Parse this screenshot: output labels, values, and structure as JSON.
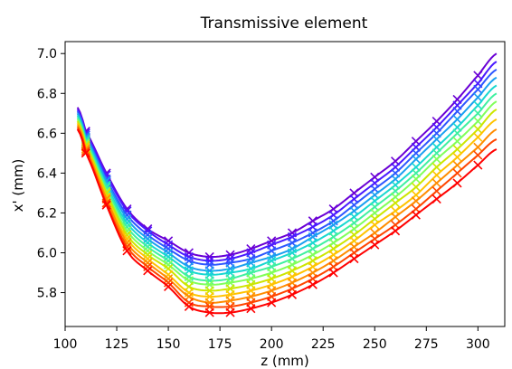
{
  "chart_data": {
    "type": "line",
    "title": "Transmissive element",
    "xlabel": "z (mm)",
    "ylabel": "x' (mm)",
    "xlim": [
      100,
      313
    ],
    "ylim": [
      5.63,
      7.06
    ],
    "xticks": [
      100,
      125,
      150,
      175,
      200,
      225,
      250,
      275,
      300
    ],
    "yticks": [
      5.8,
      6.0,
      6.2,
      6.4,
      6.6,
      6.8,
      7.0
    ],
    "grid": false,
    "legend": "none",
    "x": [
      106,
      110,
      120,
      130,
      140,
      150,
      160,
      170,
      180,
      190,
      200,
      210,
      220,
      230,
      240,
      250,
      260,
      270,
      280,
      290,
      300,
      309
    ],
    "marker_x": [
      110,
      120,
      130,
      140,
      150,
      160,
      170,
      180,
      190,
      200,
      210,
      220,
      230,
      240,
      250,
      260,
      270,
      280,
      290,
      300
    ],
    "series": [
      {
        "color": "#6a00d5",
        "values": [
          6.73,
          6.61,
          6.4,
          6.22,
          6.12,
          6.06,
          6.0,
          5.98,
          5.99,
          6.02,
          6.06,
          6.1,
          6.16,
          6.22,
          6.3,
          6.38,
          6.46,
          6.56,
          6.66,
          6.77,
          6.89,
          7.0
        ]
      },
      {
        "color": "#4a1aff",
        "values": [
          6.72,
          6.6,
          6.39,
          6.21,
          6.11,
          6.04,
          5.98,
          5.96,
          5.97,
          6.0,
          6.04,
          6.08,
          6.13,
          6.19,
          6.27,
          6.35,
          6.43,
          6.53,
          6.63,
          6.74,
          6.85,
          6.96
        ]
      },
      {
        "color": "#2d57ff",
        "values": [
          6.71,
          6.59,
          6.37,
          6.19,
          6.09,
          6.02,
          5.96,
          5.94,
          5.95,
          5.97,
          6.01,
          6.05,
          6.1,
          6.16,
          6.24,
          6.32,
          6.4,
          6.5,
          6.6,
          6.71,
          6.82,
          6.92
        ]
      },
      {
        "color": "#1aa0f0",
        "values": [
          6.7,
          6.58,
          6.36,
          6.17,
          6.07,
          6.0,
          5.93,
          5.91,
          5.92,
          5.95,
          5.98,
          6.02,
          6.08,
          6.14,
          6.21,
          6.29,
          6.37,
          6.47,
          6.57,
          6.67,
          6.78,
          6.88
        ]
      },
      {
        "color": "#18d8d0",
        "values": [
          6.69,
          6.57,
          6.34,
          6.15,
          6.05,
          5.98,
          5.91,
          5.89,
          5.9,
          5.92,
          5.96,
          6.0,
          6.05,
          6.11,
          6.18,
          6.26,
          6.34,
          6.43,
          6.53,
          6.63,
          6.74,
          6.84
        ]
      },
      {
        "color": "#3ff0a0",
        "values": [
          6.68,
          6.56,
          6.33,
          6.13,
          6.03,
          5.96,
          5.88,
          5.86,
          5.87,
          5.9,
          5.93,
          5.97,
          6.02,
          6.08,
          6.15,
          6.23,
          6.31,
          6.4,
          6.5,
          6.6,
          6.7,
          6.8
        ]
      },
      {
        "color": "#80ff5a",
        "values": [
          6.67,
          6.55,
          6.31,
          6.11,
          6.01,
          5.94,
          5.86,
          5.84,
          5.85,
          5.87,
          5.9,
          5.94,
          5.99,
          6.05,
          6.12,
          6.2,
          6.28,
          6.37,
          6.47,
          6.56,
          6.66,
          6.76
        ]
      },
      {
        "color": "#cde600",
        "values": [
          6.66,
          6.54,
          6.3,
          6.09,
          5.99,
          5.92,
          5.83,
          5.81,
          5.82,
          5.84,
          5.87,
          5.91,
          5.96,
          6.02,
          6.09,
          6.17,
          6.25,
          6.33,
          6.43,
          6.52,
          6.62,
          6.72
        ]
      },
      {
        "color": "#ffc300",
        "values": [
          6.65,
          6.53,
          6.28,
          6.07,
          5.97,
          5.89,
          5.8,
          5.78,
          5.79,
          5.81,
          5.84,
          5.88,
          5.93,
          5.99,
          6.06,
          6.14,
          6.21,
          6.29,
          6.39,
          6.48,
          6.58,
          6.67
        ]
      },
      {
        "color": "#ff8c00",
        "values": [
          6.64,
          6.52,
          6.27,
          6.05,
          5.95,
          5.87,
          5.78,
          5.75,
          5.76,
          5.78,
          5.81,
          5.85,
          5.9,
          5.96,
          6.03,
          6.1,
          6.18,
          6.26,
          6.35,
          6.44,
          6.53,
          6.62
        ]
      },
      {
        "color": "#ff4500",
        "values": [
          6.63,
          6.51,
          6.25,
          6.03,
          5.93,
          5.85,
          5.75,
          5.73,
          5.73,
          5.75,
          5.78,
          5.82,
          5.87,
          5.93,
          6.0,
          6.07,
          6.14,
          6.22,
          6.31,
          6.4,
          6.49,
          6.57
        ]
      },
      {
        "color": "#ff0000",
        "values": [
          6.62,
          6.5,
          6.24,
          6.01,
          5.91,
          5.83,
          5.73,
          5.7,
          5.7,
          5.72,
          5.75,
          5.79,
          5.84,
          5.9,
          5.97,
          6.04,
          6.11,
          6.19,
          6.27,
          6.35,
          6.44,
          6.52
        ]
      }
    ]
  }
}
